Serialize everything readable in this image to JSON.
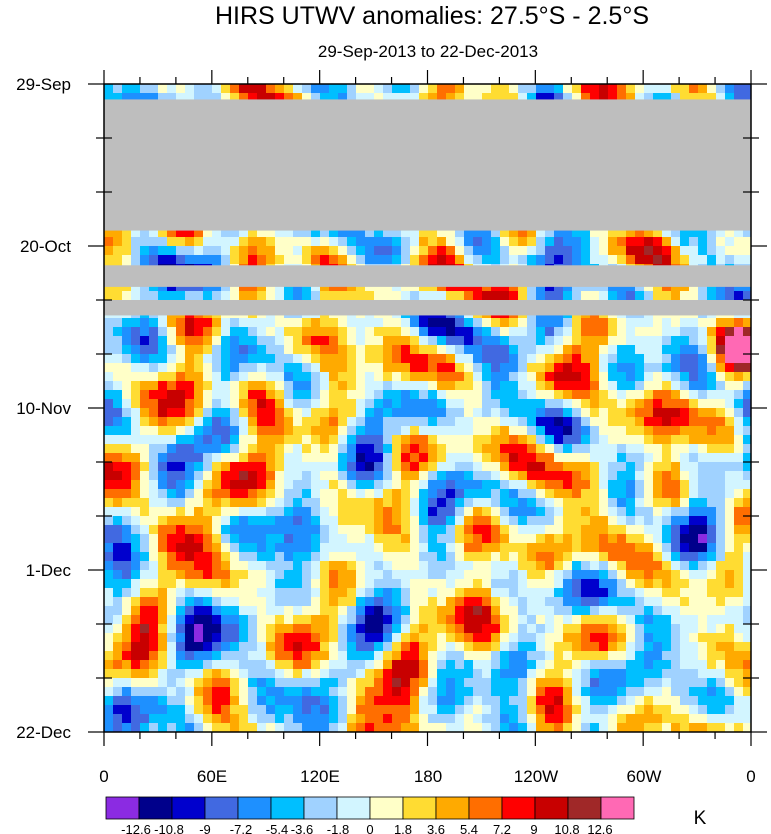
{
  "chart_data": {
    "type": "heatmap",
    "title": "HIRS UTWV anomalies: 27.5°S - 2.5°S",
    "subtitle": "29-Sep-2013 to 22-Dec-2013",
    "x_ticks": [
      "0",
      "60E",
      "120E",
      "180",
      "120W",
      "60W",
      "0"
    ],
    "y_ticks": [
      "29-Sep",
      "20-Oct",
      "10-Nov",
      "1-Dec",
      "22-Dec"
    ],
    "x_range_deg": [
      0,
      360
    ],
    "x_tick_values_deg": [
      0,
      60,
      120,
      180,
      240,
      300,
      360
    ],
    "y_range_days": [
      0,
      84
    ],
    "y_tick_values_days": [
      0,
      21,
      42,
      63,
      84
    ],
    "missing_data_periods_days": [
      [
        2,
        19
      ],
      [
        23.5,
        26.3
      ],
      [
        28,
        30
      ]
    ],
    "colorbar": {
      "unit": "K",
      "levels": [
        "-12.6",
        "-10.8",
        "-9",
        "-7.2",
        "-5.4",
        "-3.6",
        "-1.8",
        "0",
        "1.8",
        "3.6",
        "5.4",
        "7.2",
        "9",
        "10.8",
        "12.6"
      ],
      "colors": [
        "#8b2be2",
        "#00008b",
        "#0000cd",
        "#4169e1",
        "#1e90ff",
        "#00bfff",
        "#a0d2ff",
        "#d2f5ff",
        "#ffffc8",
        "#ffdc32",
        "#ffaa00",
        "#ff6e00",
        "#ff0000",
        "#c80000",
        "#a02828",
        "#ff69b4"
      ],
      "missing_color": "#bebebe"
    }
  }
}
